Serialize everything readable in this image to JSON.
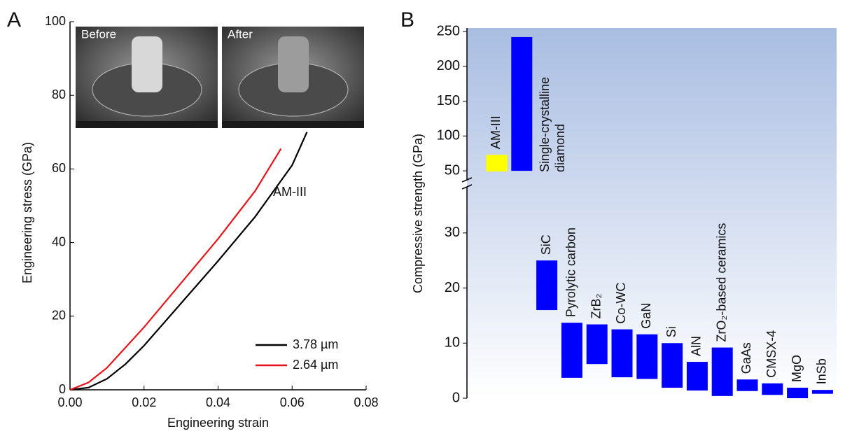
{
  "chart_data": [
    {
      "type": "line",
      "panel": "A",
      "xlabel": "Engineering strain",
      "ylabel": "Engineering stress (GPa)",
      "xlim": [
        0,
        0.08
      ],
      "ylim": [
        0,
        100
      ],
      "xticks": [
        {
          "value": 0,
          "label": "0.00"
        },
        {
          "value": 0.02,
          "label": "0.02"
        },
        {
          "value": 0.04,
          "label": "0.04"
        },
        {
          "value": 0.06,
          "label": "0.06"
        },
        {
          "value": 0.08,
          "label": "0.08"
        }
      ],
      "yticks": [
        0,
        20,
        40,
        60,
        80,
        100
      ],
      "annotation": "AM-III",
      "insets": [
        "Before",
        "After"
      ],
      "series": [
        {
          "name": "3.78 µm",
          "color": "#000000",
          "x": [
            0,
            0.005,
            0.01,
            0.015,
            0.02,
            0.03,
            0.04,
            0.05,
            0.06,
            0.064
          ],
          "values": [
            0,
            0.6,
            3,
            7,
            12,
            23.5,
            35,
            47,
            61,
            70
          ]
        },
        {
          "name": "2.64 µm",
          "color": "#e8141b",
          "x": [
            0,
            0.005,
            0.01,
            0.02,
            0.03,
            0.04,
            0.05,
            0.057
          ],
          "values": [
            0,
            2,
            6,
            17,
            29,
            41,
            54,
            65.5
          ]
        }
      ]
    },
    {
      "type": "range-bar",
      "panel": "B",
      "ylabel": "Compressive strength (GPa)",
      "categories": [
        "AM-III",
        "Single-crystalline diamond",
        "SiC",
        "Pyrolytic carbon",
        "ZrB₂",
        "Co-WC",
        "GaN",
        "Si",
        "AlN",
        "ZrO₂-based ceramics",
        "GaAs",
        "CMSX-4",
        "MgO",
        "InSb"
      ],
      "low": [
        49,
        50,
        16,
        3.7,
        6.2,
        3.8,
        3.5,
        1.9,
        1.4,
        0.4,
        1.3,
        0.6,
        0,
        0.8
      ],
      "high": [
        73,
        242,
        25,
        13.7,
        13.4,
        12.5,
        11.6,
        10,
        6.6,
        9.2,
        3.4,
        2.7,
        1.9,
        1.5
      ],
      "colors": [
        "#ffff00",
        "#0000ff",
        "#0000ff",
        "#0000ff",
        "#0000ff",
        "#0000ff",
        "#0000ff",
        "#0000ff",
        "#0000ff",
        "#0000ff",
        "#0000ff",
        "#0000ff",
        "#0000ff",
        "#0000ff"
      ],
      "ylim": [
        0,
        39
      ],
      "yticks": [
        0,
        10,
        20,
        30
      ],
      "upper_ylim": [
        32,
        255
      ],
      "upper_yticks": [
        50,
        100,
        150,
        200,
        250
      ]
    }
  ]
}
